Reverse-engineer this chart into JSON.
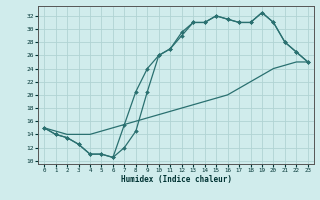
{
  "xlabel": "Humidex (Indice chaleur)",
  "bg_color": "#d0ecec",
  "grid_color": "#b0d4d4",
  "line_color": "#2a7070",
  "xlim": [
    -0.5,
    23.5
  ],
  "ylim": [
    9.5,
    33.5
  ],
  "xticks": [
    0,
    1,
    2,
    3,
    4,
    5,
    6,
    7,
    8,
    9,
    10,
    11,
    12,
    13,
    14,
    15,
    16,
    17,
    18,
    19,
    20,
    21,
    22,
    23
  ],
  "yticks": [
    10,
    12,
    14,
    16,
    18,
    20,
    22,
    24,
    26,
    28,
    30,
    32
  ],
  "curve1_x": [
    0,
    1,
    2,
    3,
    4,
    5,
    6,
    7,
    8,
    9,
    10,
    11,
    12,
    13,
    14,
    15,
    16,
    17,
    18,
    19,
    20,
    21,
    22,
    23
  ],
  "curve1_y": [
    15,
    14,
    13.5,
    12.5,
    11,
    11,
    10.5,
    12,
    14.5,
    20.5,
    26,
    27,
    29.5,
    31,
    31,
    32,
    31.5,
    31,
    31,
    32.5,
    31,
    28,
    26.5,
    25
  ],
  "curve2_x": [
    0,
    1,
    2,
    3,
    4,
    5,
    6,
    7,
    8,
    9,
    10,
    11,
    12,
    13,
    14,
    15,
    16,
    17,
    18,
    19,
    20,
    21,
    22,
    23
  ],
  "curve2_y": [
    15,
    14,
    13.5,
    12.5,
    11,
    11,
    10.5,
    15.5,
    20.5,
    24,
    26,
    27,
    29,
    31,
    31,
    32,
    31.5,
    31,
    31,
    32.5,
    31,
    28,
    26.5,
    25
  ],
  "curve3_x": [
    0,
    1,
    2,
    3,
    4,
    5,
    6,
    7,
    8,
    9,
    10,
    11,
    12,
    13,
    14,
    15,
    16,
    17,
    18,
    19,
    20,
    21,
    22,
    23
  ],
  "curve3_y": [
    15,
    14.5,
    14,
    14,
    14,
    14.5,
    15,
    15.5,
    16,
    16.5,
    17,
    17.5,
    18,
    18.5,
    19,
    19.5,
    20,
    21,
    22,
    23,
    24,
    24.5,
    25,
    25
  ],
  "lw": 0.9,
  "ms": 2.0
}
